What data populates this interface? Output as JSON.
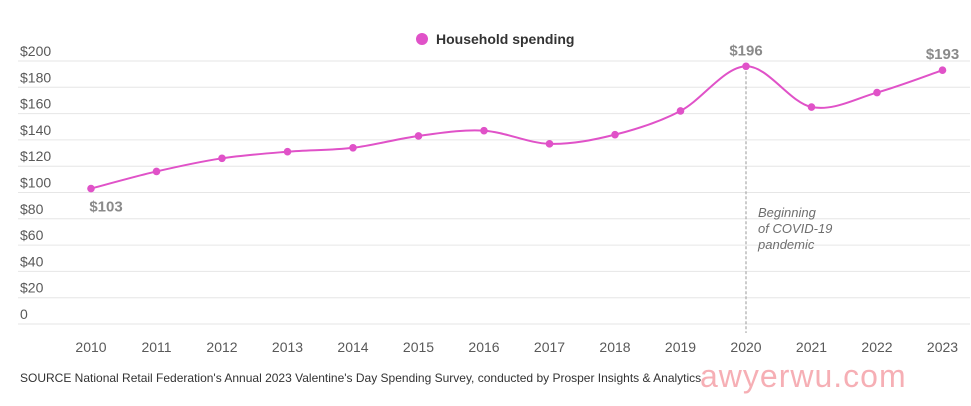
{
  "chart_data": {
    "type": "line",
    "title": "",
    "xlabel": "",
    "ylabel": "",
    "categories": [
      "2010",
      "2011",
      "2012",
      "2013",
      "2014",
      "2015",
      "2016",
      "2017",
      "2018",
      "2019",
      "2020",
      "2021",
      "2022",
      "2023"
    ],
    "series": [
      {
        "name": "Household spending",
        "values": [
          103,
          116,
          126,
          131,
          134,
          143,
          147,
          137,
          144,
          162,
          196,
          165,
          176,
          193
        ]
      }
    ],
    "ylim": [
      0,
      200
    ],
    "yticks": [
      {
        "value": 0,
        "label": "0"
      },
      {
        "value": 20,
        "label": "$20"
      },
      {
        "value": 40,
        "label": "$40"
      },
      {
        "value": 60,
        "label": "$60"
      },
      {
        "value": 80,
        "label": "$80"
      },
      {
        "value": 100,
        "label": "$100"
      },
      {
        "value": 120,
        "label": "$120"
      },
      {
        "value": 140,
        "label": "$140"
      },
      {
        "value": 160,
        "label": "$160"
      },
      {
        "value": 180,
        "label": "$180"
      },
      {
        "value": 200,
        "label": "$200"
      }
    ],
    "data_labels": [
      {
        "index": 0,
        "text": "$103",
        "position": "below"
      },
      {
        "index": 10,
        "text": "$196",
        "position": "above"
      },
      {
        "index": 13,
        "text": "$193",
        "position": "above"
      }
    ],
    "annotation": {
      "index": 10,
      "lines": [
        "Beginning",
        "of COVID-19",
        "pandemic"
      ]
    },
    "legend_position": "top-center",
    "grid": true
  },
  "legend": {
    "label": "Household spending"
  },
  "source_text": "SOURCE National Retail Federation's Annual 2023 Valentine's Day Spending Survey, conducted by Prosper Insights & Analytics",
  "watermark": "awyerwu.com",
  "colors": {
    "series": "#e052c8",
    "grid": "#e6e6e6",
    "tick_text": "#595959",
    "label_text": "#8a8a8a",
    "annotation_text": "#6e6e6e",
    "annotation_line": "#aaaaaa"
  }
}
